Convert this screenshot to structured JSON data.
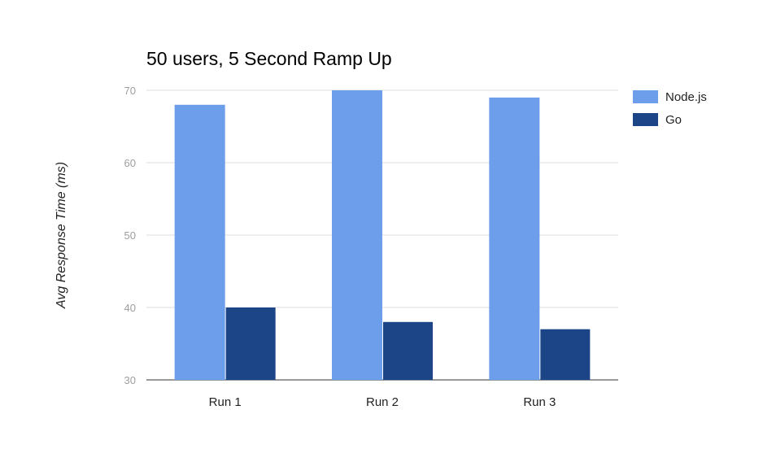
{
  "chart_data": {
    "type": "bar",
    "title": "50 users, 5 Second Ramp Up",
    "ylabel": "Avg Response Time (ms)",
    "xlabel": "",
    "categories": [
      "Run 1",
      "Run 2",
      "Run 3"
    ],
    "ylim": [
      30,
      70
    ],
    "yticks": [
      30,
      40,
      50,
      60,
      70
    ],
    "grid": true,
    "legend_position": "right",
    "series": [
      {
        "name": "Node.js",
        "color": "#6d9eeb",
        "values": [
          68,
          70,
          69
        ]
      },
      {
        "name": "Go",
        "color": "#1c4587",
        "values": [
          40,
          38,
          37
        ]
      }
    ]
  }
}
